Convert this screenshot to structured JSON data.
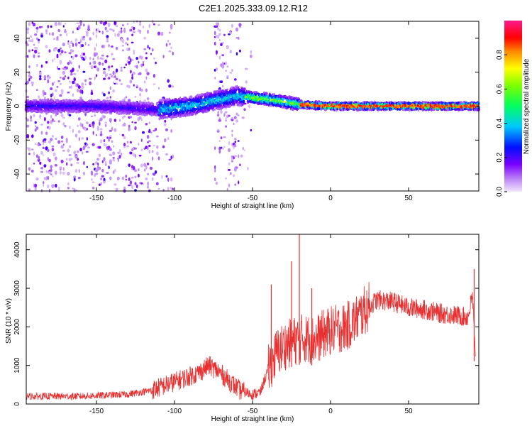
{
  "title": "C2E1.2025.333.09.12.R12",
  "chart_data": [
    {
      "type": "heatmap",
      "xlabel": "Height of straight line (km)",
      "ylabel": "Frequency (Hz)",
      "xlim": [
        -195,
        95
      ],
      "ylim": [
        -50,
        50
      ],
      "xticks": [
        -150,
        -100,
        -50,
        0,
        50
      ],
      "yticks": [
        -40,
        -20,
        0,
        20,
        40
      ],
      "colorbar": {
        "label": "Normalized spectral amplitude",
        "range": [
          0,
          1
        ],
        "ticks": [
          "0.0",
          "0.2",
          "0.4",
          "0.6",
          "0.8"
        ],
        "colormap": "rainbow"
      },
      "band_center_hz": [
        {
          "x": -190,
          "y": 0
        },
        {
          "x": -150,
          "y": 0
        },
        {
          "x": -110,
          "y": -2
        },
        {
          "x": -90,
          "y": 0
        },
        {
          "x": -75,
          "y": 3
        },
        {
          "x": -60,
          "y": 6
        },
        {
          "x": -40,
          "y": 4
        },
        {
          "x": -20,
          "y": 1
        },
        {
          "x": 0,
          "y": 0
        },
        {
          "x": 50,
          "y": 0
        },
        {
          "x": 92,
          "y": 0
        }
      ]
    },
    {
      "type": "line",
      "xlabel": "Height of straight line (km)",
      "ylabel": "SNR (10 * v/v)",
      "xlim": [
        -195,
        95
      ],
      "ylim": [
        0,
        4400
      ],
      "xticks": [
        -150,
        -100,
        -50,
        0,
        50
      ],
      "yticks": [
        0,
        1000,
        2000,
        3000,
        4000
      ],
      "color": "#e83030",
      "series": [
        {
          "x": [
            -195,
            -160,
            -130,
            -115,
            -105,
            -95,
            -85,
            -78,
            -72,
            -65,
            -58,
            -50,
            -45,
            -40,
            -35,
            -30,
            -25,
            -22,
            -20,
            -15,
            -10,
            -5,
            0,
            5,
            10,
            15,
            20,
            25,
            30,
            40,
            50,
            60,
            70,
            80,
            88,
            91,
            93
          ],
          "y": [
            200,
            200,
            250,
            350,
            500,
            650,
            800,
            1000,
            850,
            600,
            350,
            250,
            300,
            900,
            1300,
            1500,
            1600,
            1650,
            1700,
            1700,
            1650,
            1800,
            1900,
            1950,
            2000,
            2150,
            2350,
            2550,
            2700,
            2650,
            2500,
            2450,
            2350,
            2300,
            2250,
            2800,
            900
          ]
        }
      ],
      "spikes": [
        {
          "x": -38,
          "y": 3100
        },
        {
          "x": -25,
          "y": 3700
        },
        {
          "x": -20,
          "y": 4400
        },
        {
          "x": -12,
          "y": 3000
        },
        {
          "x": 92,
          "y": 3500
        }
      ]
    }
  ]
}
